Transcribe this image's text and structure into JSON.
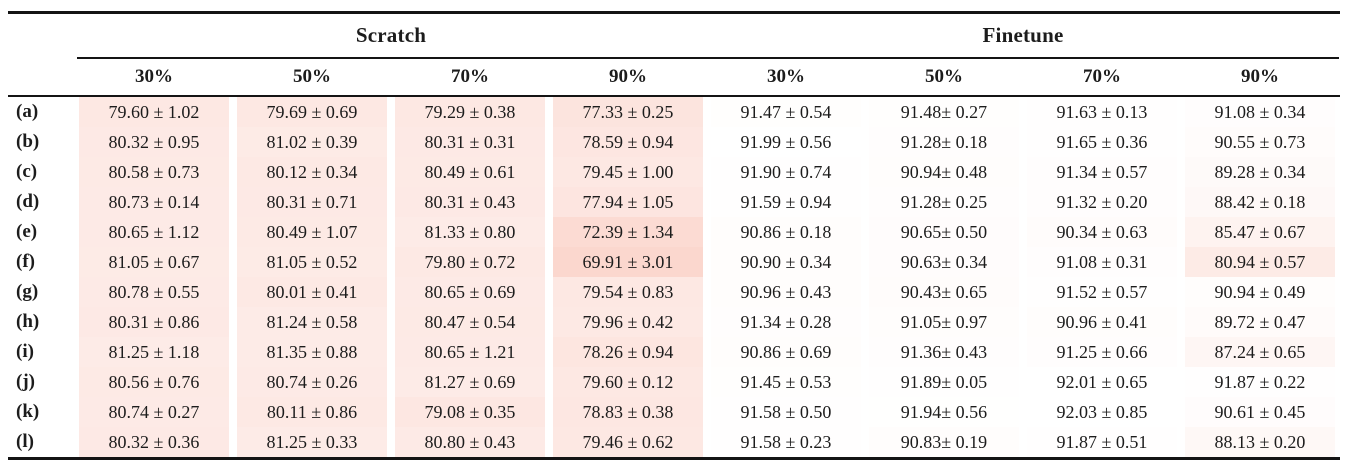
{
  "table": {
    "col_groups": [
      {
        "label": "Scratch"
      },
      {
        "label": "Finetune"
      }
    ],
    "sub_headers": [
      "30%",
      "50%",
      "70%",
      "90%",
      "30%",
      "50%",
      "70%",
      "90%"
    ],
    "rows": [
      {
        "label": "(a)",
        "cells": [
          "79.60 ± 1.02",
          "79.69 ± 0.69",
          "79.29 ± 0.38",
          "77.33 ± 0.25",
          "91.47 ± 0.54",
          "91.48± 0.27",
          "91.63 ± 0.13",
          "91.08 ± 0.34"
        ]
      },
      {
        "label": "(b)",
        "cells": [
          "80.32 ± 0.95",
          "81.02 ± 0.39",
          "80.31 ± 0.31",
          "78.59 ± 0.94",
          "91.99 ± 0.56",
          "91.28± 0.18",
          "91.65 ± 0.36",
          "90.55 ± 0.73"
        ]
      },
      {
        "label": "(c)",
        "cells": [
          "80.58 ± 0.73",
          "80.12 ± 0.34",
          "80.49 ± 0.61",
          "79.45 ± 1.00",
          "91.90 ± 0.74",
          "90.94± 0.48",
          "91.34 ± 0.57",
          "89.28 ± 0.34"
        ]
      },
      {
        "label": "(d)",
        "cells": [
          "80.73 ± 0.14",
          "80.31 ± 0.71",
          "80.31 ± 0.43",
          "77.94 ± 1.05",
          "91.59 ± 0.94",
          "91.28± 0.25",
          "91.32 ± 0.20",
          "88.42 ± 0.18"
        ]
      },
      {
        "label": "(e)",
        "cells": [
          "80.65 ± 1.12",
          "80.49 ± 1.07",
          "81.33 ± 0.80",
          "72.39 ± 1.34",
          "90.86 ± 0.18",
          "90.65± 0.50",
          "90.34 ± 0.63",
          "85.47 ± 0.67"
        ]
      },
      {
        "label": "(f)",
        "cells": [
          "81.05 ± 0.67",
          "81.05 ± 0.52",
          "79.80 ± 0.72",
          "69.91 ± 3.01",
          "90.90 ± 0.34",
          "90.63± 0.34",
          "91.08 ± 0.31",
          "80.94 ± 0.57"
        ]
      },
      {
        "label": "(g)",
        "cells": [
          "80.78 ± 0.55",
          "80.01 ± 0.41",
          "80.65 ± 0.69",
          "79.54 ± 0.83",
          "90.96 ± 0.43",
          "90.43± 0.65",
          "91.52 ± 0.57",
          "90.94 ± 0.49"
        ]
      },
      {
        "label": "(h)",
        "cells": [
          "80.31 ± 0.86",
          "81.24 ± 0.58",
          "80.47 ± 0.54",
          "79.96 ± 0.42",
          "91.34 ± 0.28",
          "91.05± 0.97",
          "90.96 ± 0.41",
          "89.72 ± 0.47"
        ]
      },
      {
        "label": "(i)",
        "cells": [
          "81.25 ± 1.18",
          "81.35 ± 0.88",
          "80.65 ± 1.21",
          "78.26 ± 0.94",
          "90.86 ± 0.69",
          "91.36± 0.43",
          "91.25 ± 0.66",
          "87.24 ± 0.65"
        ]
      },
      {
        "label": "(j)",
        "cells": [
          "80.56 ± 0.76",
          "80.74 ± 0.26",
          "81.27 ± 0.69",
          "79.60 ± 0.12",
          "91.45 ± 0.53",
          "91.89± 0.05",
          "92.01 ± 0.65",
          "91.87 ± 0.22"
        ]
      },
      {
        "label": "(k)",
        "cells": [
          "80.74 ± 0.27",
          "80.11 ± 0.86",
          "79.08 ± 0.35",
          "78.83 ± 0.38",
          "91.58 ± 0.50",
          "91.94± 0.56",
          "92.03 ± 0.85",
          "90.61 ± 0.45"
        ]
      },
      {
        "label": "(l)",
        "cells": [
          "80.32 ± 0.36",
          "81.25 ± 0.33",
          "80.80 ± 0.43",
          "79.46 ± 0.62",
          "91.58 ± 0.23",
          "90.83± 0.19",
          "91.87 ± 0.51",
          "88.13 ± 0.20"
        ]
      }
    ],
    "heatmap": {
      "vmin": 69.0,
      "vmax": 92.2,
      "white_hex": "#ffffff",
      "tint_hex": "#fbd5cc",
      "tint_rgb": [
        251,
        213,
        204
      ]
    },
    "rule_color": "#141414"
  }
}
